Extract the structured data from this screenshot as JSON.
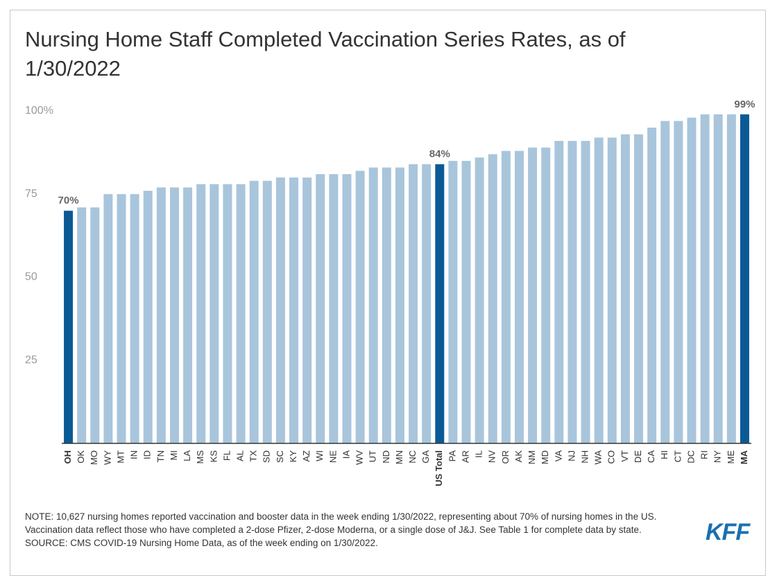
{
  "chart_data": {
    "type": "bar",
    "title": "Nursing Home Staff Completed Vaccination Series Rates, as of 1/30/2022",
    "categories": [
      "OH",
      "OK",
      "MO",
      "WY",
      "MT",
      "IN",
      "ID",
      "TN",
      "MI",
      "LA",
      "MS",
      "KS",
      "FL",
      "AL",
      "TX",
      "SD",
      "SC",
      "KY",
      "AZ",
      "WI",
      "NE",
      "IA",
      "WV",
      "UT",
      "ND",
      "MN",
      "NC",
      "GA",
      "US Total",
      "PA",
      "AR",
      "IL",
      "NV",
      "OR",
      "AK",
      "NM",
      "MD",
      "VA",
      "NJ",
      "NH",
      "WA",
      "CO",
      "VT",
      "DE",
      "CA",
      "HI",
      "CT",
      "DC",
      "RI",
      "NY",
      "ME",
      "MA"
    ],
    "values": [
      70,
      71,
      71,
      75,
      75,
      75,
      76,
      77,
      77,
      77,
      78,
      78,
      78,
      78,
      79,
      79,
      80,
      80,
      80,
      81,
      81,
      81,
      82,
      83,
      83,
      83,
      84,
      84,
      84,
      85,
      85,
      86,
      87,
      88,
      88,
      89,
      89,
      91,
      91,
      91,
      92,
      92,
      93,
      93,
      95,
      97,
      97,
      98,
      99,
      99,
      99,
      99
    ],
    "value_labels": [
      "70%",
      null,
      null,
      null,
      null,
      null,
      null,
      null,
      null,
      null,
      null,
      null,
      null,
      null,
      null,
      null,
      null,
      null,
      null,
      null,
      null,
      null,
      null,
      null,
      null,
      null,
      null,
      null,
      "84%",
      null,
      null,
      null,
      null,
      null,
      null,
      null,
      null,
      null,
      null,
      null,
      null,
      null,
      null,
      null,
      null,
      null,
      null,
      null,
      null,
      null,
      null,
      "99%"
    ],
    "colors": [
      "#0b5a96",
      "#a8c5dc",
      "#a8c5dc",
      "#a8c5dc",
      "#a8c5dc",
      "#a8c5dc",
      "#a8c5dc",
      "#a8c5dc",
      "#a8c5dc",
      "#a8c5dc",
      "#a8c5dc",
      "#a8c5dc",
      "#a8c5dc",
      "#a8c5dc",
      "#a8c5dc",
      "#a8c5dc",
      "#a8c5dc",
      "#a8c5dc",
      "#a8c5dc",
      "#a8c5dc",
      "#a8c5dc",
      "#a8c5dc",
      "#a8c5dc",
      "#a8c5dc",
      "#a8c5dc",
      "#a8c5dc",
      "#a8c5dc",
      "#a8c5dc",
      "#0b5a96",
      "#a8c5dc",
      "#a8c5dc",
      "#a8c5dc",
      "#a8c5dc",
      "#a8c5dc",
      "#a8c5dc",
      "#a8c5dc",
      "#a8c5dc",
      "#a8c5dc",
      "#a8c5dc",
      "#a8c5dc",
      "#a8c5dc",
      "#a8c5dc",
      "#a8c5dc",
      "#a8c5dc",
      "#a8c5dc",
      "#a8c5dc",
      "#a8c5dc",
      "#a8c5dc",
      "#a8c5dc",
      "#a8c5dc",
      "#a8c5dc",
      "#0b5a96"
    ],
    "ylim": [
      0,
      100
    ],
    "yticks": [
      {
        "value": 100,
        "label": "100%"
      },
      75,
      50,
      25
    ],
    "grid": false,
    "note": "NOTE: 10,627 nursing homes reported vaccination and booster data in the week ending 1/30/2022, representing about 70% of nursing homes in the US. Vaccination data reflect those who have completed a 2-dose Pfizer, 2-dose Moderna, or a single dose of J&J. See Table 1 for complete data by state.",
    "source": "SOURCE: CMS COVID-19 Nursing Home Data, as of the week ending on 1/30/2022.",
    "logo": "KFF"
  }
}
